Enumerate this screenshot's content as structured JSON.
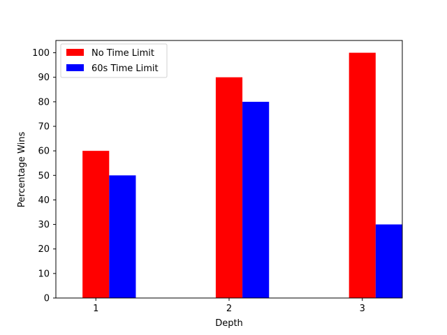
{
  "chart_data": {
    "type": "bar",
    "title": "",
    "xlabel": "Depth",
    "ylabel": "Percentage Wins",
    "categories": [
      "1",
      "2",
      "3"
    ],
    "x": [
      1,
      2,
      3
    ],
    "xlim": [
      0.7,
      3.3
    ],
    "ylim": [
      0,
      105
    ],
    "yticks": [
      0,
      10,
      20,
      30,
      40,
      50,
      60,
      70,
      80,
      90,
      100
    ],
    "grid": false,
    "legend_position": "top-left",
    "series": [
      {
        "name": "No Time Limit",
        "values": [
          60,
          90,
          100
        ],
        "color": "#ff0000"
      },
      {
        "name": "60s Time Limit",
        "values": [
          50,
          80,
          30
        ],
        "color": "#0000ff"
      }
    ]
  }
}
